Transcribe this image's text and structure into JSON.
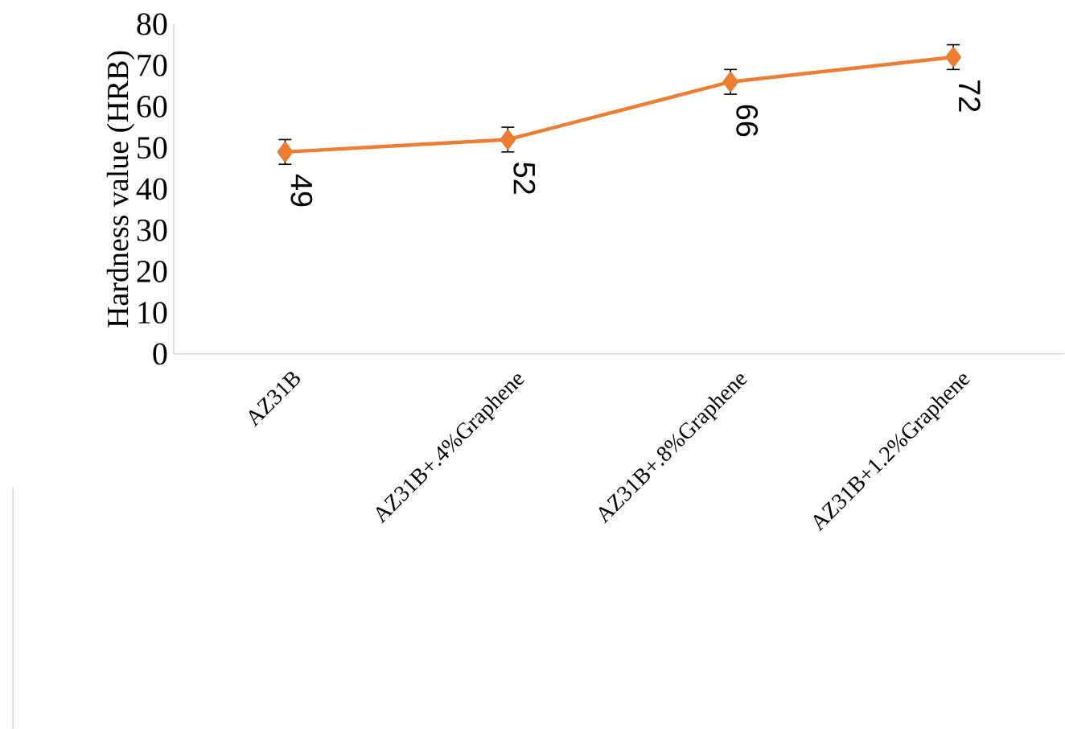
{
  "chart_data": {
    "type": "line",
    "ylabel": "Hardness value (HRB)",
    "categories": [
      "AZ31B",
      "AZ31B+.4%Graphene",
      "AZ31B+.8%Graphene",
      "AZ31B+1.2%Graphene"
    ],
    "values": [
      49,
      52,
      66,
      72
    ],
    "errors": [
      3,
      3,
      3,
      3
    ],
    "color": "#ed7d31",
    "marker": "diamond",
    "ylim": [
      0,
      80
    ],
    "yticks": [
      0,
      10,
      20,
      30,
      40,
      50,
      60,
      70,
      80
    ],
    "data_labels": true,
    "grid": false
  }
}
